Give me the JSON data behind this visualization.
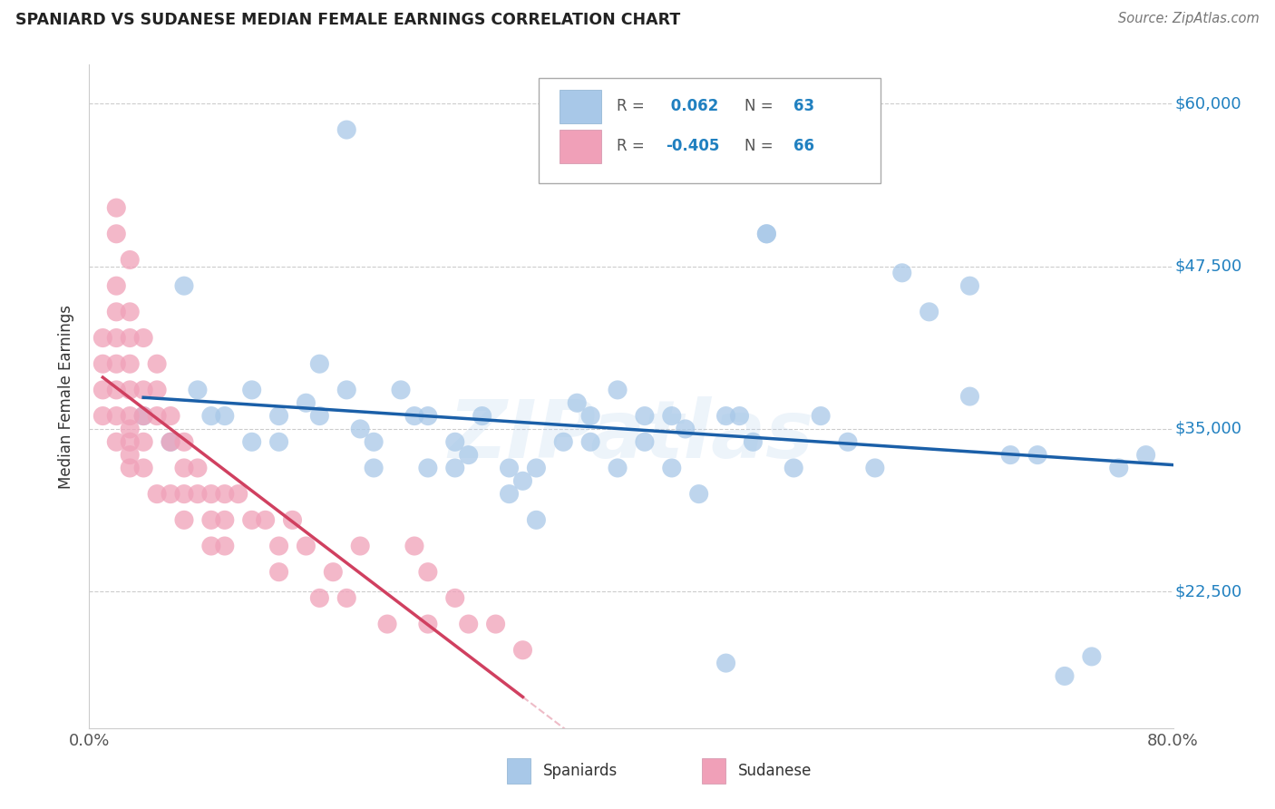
{
  "title": "SPANIARD VS SUDANESE MEDIAN FEMALE EARNINGS CORRELATION CHART",
  "source": "Source: ZipAtlas.com",
  "ylabel": "Median Female Earnings",
  "xmin": 0.0,
  "xmax": 0.8,
  "ymin": 12000,
  "ymax": 63000,
  "R_spaniard": 0.062,
  "N_spaniard": 63,
  "R_sudanese": -0.405,
  "N_sudanese": 66,
  "color_spaniard": "#a8c8e8",
  "color_sudanese": "#f0a0b8",
  "line_color_spaniard": "#1a5fa8",
  "line_color_sudanese": "#d04060",
  "ytick_positions": [
    22500,
    35000,
    47500,
    60000
  ],
  "ytick_labels": [
    "$22,500",
    "$35,000",
    "$47,500",
    "$60,000"
  ],
  "sp_x": [
    0.19,
    0.5,
    0.47,
    0.07,
    0.09,
    0.12,
    0.14,
    0.14,
    0.17,
    0.17,
    0.19,
    0.21,
    0.21,
    0.23,
    0.25,
    0.25,
    0.27,
    0.27,
    0.29,
    0.31,
    0.31,
    0.33,
    0.33,
    0.35,
    0.37,
    0.37,
    0.39,
    0.39,
    0.41,
    0.41,
    0.43,
    0.43,
    0.45,
    0.47,
    0.49,
    0.52,
    0.54,
    0.56,
    0.58,
    0.6,
    0.62,
    0.65,
    0.68,
    0.7,
    0.72,
    0.74,
    0.76,
    0.78,
    0.5,
    0.65,
    0.04,
    0.06,
    0.08,
    0.1,
    0.12,
    0.16,
    0.2,
    0.24,
    0.28,
    0.32,
    0.36,
    0.44,
    0.48
  ],
  "sp_y": [
    58000,
    50000,
    17000,
    46000,
    36000,
    38000,
    36000,
    34000,
    40000,
    36000,
    38000,
    34000,
    32000,
    38000,
    36000,
    32000,
    34000,
    32000,
    36000,
    32000,
    30000,
    32000,
    28000,
    34000,
    36000,
    34000,
    32000,
    38000,
    36000,
    34000,
    32000,
    36000,
    30000,
    36000,
    34000,
    32000,
    36000,
    34000,
    32000,
    47000,
    44000,
    46000,
    33000,
    33000,
    16000,
    17500,
    32000,
    33000,
    50000,
    37500,
    36000,
    34000,
    38000,
    36000,
    34000,
    37000,
    35000,
    36000,
    33000,
    31000,
    37000,
    35000,
    36000
  ],
  "su_x": [
    0.01,
    0.01,
    0.01,
    0.01,
    0.02,
    0.02,
    0.02,
    0.02,
    0.02,
    0.02,
    0.02,
    0.02,
    0.02,
    0.03,
    0.03,
    0.03,
    0.03,
    0.03,
    0.03,
    0.03,
    0.03,
    0.03,
    0.03,
    0.04,
    0.04,
    0.04,
    0.04,
    0.04,
    0.05,
    0.05,
    0.05,
    0.05,
    0.06,
    0.06,
    0.06,
    0.07,
    0.07,
    0.07,
    0.07,
    0.08,
    0.08,
    0.09,
    0.09,
    0.09,
    0.1,
    0.1,
    0.1,
    0.11,
    0.12,
    0.13,
    0.14,
    0.14,
    0.15,
    0.16,
    0.17,
    0.18,
    0.19,
    0.2,
    0.22,
    0.24,
    0.25,
    0.25,
    0.27,
    0.28,
    0.3,
    0.32
  ],
  "su_y": [
    42000,
    40000,
    38000,
    36000,
    52000,
    50000,
    46000,
    44000,
    42000,
    40000,
    38000,
    36000,
    34000,
    48000,
    44000,
    42000,
    40000,
    38000,
    36000,
    35000,
    34000,
    33000,
    32000,
    42000,
    38000,
    36000,
    34000,
    32000,
    40000,
    38000,
    36000,
    30000,
    36000,
    34000,
    30000,
    34000,
    32000,
    30000,
    28000,
    32000,
    30000,
    30000,
    28000,
    26000,
    30000,
    28000,
    26000,
    30000,
    28000,
    28000,
    26000,
    24000,
    28000,
    26000,
    22000,
    24000,
    22000,
    26000,
    20000,
    26000,
    20000,
    24000,
    22000,
    20000,
    20000,
    18000
  ]
}
